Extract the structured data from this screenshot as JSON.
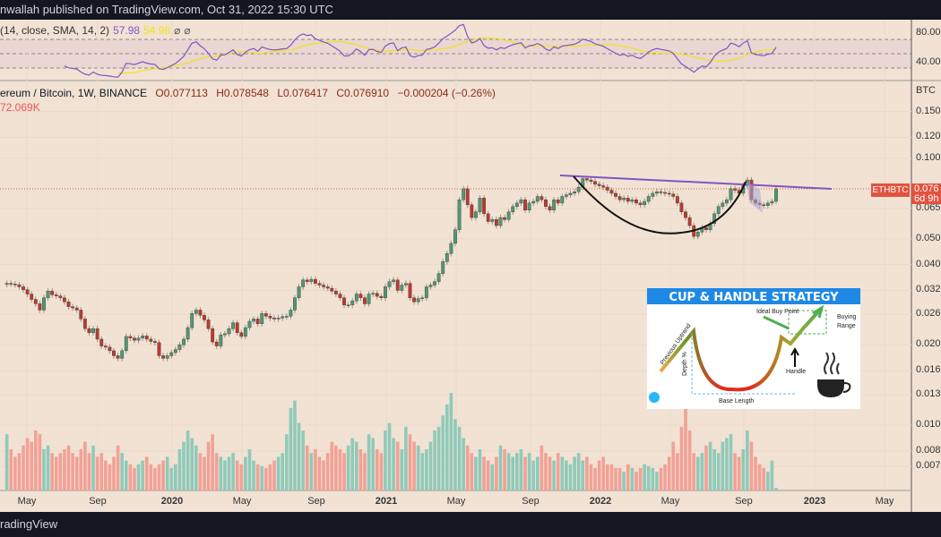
{
  "header": {
    "text": "nwallah published on TradingView.com, Oct 31, 2022 15:30 UTC"
  },
  "footer": {
    "text": "radingView"
  },
  "rsi": {
    "legend_params": "(14, close, SMA, 14, 2)",
    "value": "57.98",
    "sma_value": "54.98",
    "icons": [
      "⌀",
      "⌀"
    ],
    "axis_ticks": [
      "80.00",
      "40.00"
    ],
    "line_color": "#7e57c2",
    "sma_color": "#f2e21a",
    "bands": [
      70,
      50,
      30
    ]
  },
  "main": {
    "symbol": "ereum / Bitcoin, 1W, BINANCE",
    "open": "O0.077113",
    "high": "H0.078548",
    "low": "L0.076417",
    "close": "C0.076910",
    "change": "−0.000204 (−0.26%)",
    "volume": "72.069K",
    "currency": "BTC",
    "symbol_tag": "ETHBTC",
    "price_tag": "0.076",
    "countdown": "6d 9h"
  },
  "chart_data": {
    "type": "candlestick",
    "interval": "1W",
    "y_scale": "log",
    "ylim": [
      0.0065,
      0.17
    ],
    "y_ticks": [
      "0.150",
      "0.120",
      "0.100",
      "0.065",
      "0.050",
      "0.040",
      "0.032",
      "0.026",
      "0.020",
      "0.016",
      "0.013",
      "0.010",
      "0.008",
      "0.007"
    ],
    "y_tick_values": [
      0.15,
      0.12,
      0.1,
      0.065,
      0.05,
      0.04,
      0.032,
      0.026,
      0.02,
      0.016,
      0.013,
      0.01,
      0.008,
      0.007
    ],
    "x_ticks": [
      "May",
      "Sep",
      "2020",
      "May",
      "Sep",
      "2021",
      "May",
      "Sep",
      "2022",
      "May",
      "Sep",
      "2023",
      "May"
    ],
    "last_price": 0.07691,
    "up_color": "#4e9a72",
    "down_color": "#c0392b",
    "closes": [
      0.034,
      0.0338,
      0.0336,
      0.033,
      0.0322,
      0.031,
      0.0296,
      0.0285,
      0.027,
      0.03,
      0.0318,
      0.0308,
      0.0305,
      0.03,
      0.029,
      0.0278,
      0.0275,
      0.027,
      0.025,
      0.023,
      0.0222,
      0.023,
      0.021,
      0.0198,
      0.0196,
      0.019,
      0.0182,
      0.0178,
      0.019,
      0.0215,
      0.0212,
      0.0208,
      0.0212,
      0.0216,
      0.021,
      0.0206,
      0.0204,
      0.0182,
      0.0178,
      0.0182,
      0.0187,
      0.0192,
      0.02,
      0.021,
      0.0232,
      0.0262,
      0.027,
      0.0258,
      0.0248,
      0.023,
      0.0205,
      0.0198,
      0.0218,
      0.022,
      0.023,
      0.0242,
      0.0222,
      0.0215,
      0.0232,
      0.0245,
      0.025,
      0.024,
      0.0262,
      0.0256,
      0.0252,
      0.025,
      0.0252,
      0.0255,
      0.0256,
      0.027,
      0.03,
      0.033,
      0.035,
      0.0345,
      0.0352,
      0.034,
      0.0335,
      0.033,
      0.0326,
      0.0318,
      0.031,
      0.03,
      0.0282,
      0.0282,
      0.0292,
      0.031,
      0.03,
      0.0285,
      0.031,
      0.0312,
      0.0304,
      0.03,
      0.033,
      0.0345,
      0.035,
      0.032,
      0.0335,
      0.034,
      0.03,
      0.029,
      0.0298,
      0.03,
      0.033,
      0.0335,
      0.0345,
      0.037,
      0.041,
      0.044,
      0.048,
      0.054,
      0.07,
      0.077,
      0.067,
      0.06,
      0.063,
      0.071,
      0.062,
      0.058,
      0.059,
      0.056,
      0.06,
      0.059,
      0.063,
      0.066,
      0.068,
      0.07,
      0.064,
      0.068,
      0.069,
      0.072,
      0.07,
      0.066,
      0.064,
      0.07,
      0.068,
      0.072,
      0.073,
      0.074,
      0.075,
      0.078,
      0.084,
      0.083,
      0.082,
      0.08,
      0.079,
      0.078,
      0.076,
      0.074,
      0.072,
      0.07,
      0.071,
      0.069,
      0.07,
      0.068,
      0.067,
      0.069,
      0.072,
      0.074,
      0.075,
      0.0745,
      0.074,
      0.0735,
      0.072,
      0.068,
      0.063,
      0.06,
      0.056,
      0.051,
      0.053,
      0.055,
      0.054,
      0.057,
      0.062,
      0.066,
      0.068,
      0.07,
      0.077,
      0.076,
      0.074,
      0.079,
      0.083,
      0.07,
      0.068,
      0.067,
      0.0665,
      0.068,
      0.069,
      0.0769
    ],
    "volumes_k": [
      1500,
      1100,
      900,
      1000,
      1200,
      1400,
      1300,
      1600,
      1500,
      1100,
      1200,
      1000,
      900,
      1000,
      1100,
      1200,
      1000,
      900,
      1100,
      1300,
      1000,
      1200,
      900,
      1000,
      800,
      700,
      900,
      1200,
      1000,
      800,
      700,
      600,
      700,
      800,
      900,
      700,
      600,
      700,
      800,
      900,
      600,
      700,
      1100,
      1300,
      1600,
      1400,
      1200,
      1000,
      900,
      1300,
      1500,
      1000,
      900,
      800,
      900,
      1000,
      800,
      700,
      900,
      1100,
      800,
      700,
      650,
      600,
      700,
      800,
      900,
      1000,
      1500,
      2200,
      2400,
      1800,
      1600,
      1200,
      1000,
      1100,
      900,
      800,
      1000,
      1300,
      1200,
      1100,
      1000,
      1200,
      1400,
      1300,
      1100,
      1000,
      1500,
      1400,
      1100,
      1000,
      1600,
      1800,
      1400,
      1300,
      1100,
      1700,
      1500,
      1300,
      1200,
      1000,
      1100,
      1300,
      1600,
      1700,
      2000,
      2300,
      2600,
      1900,
      1700,
      1400,
      1200,
      1000,
      900,
      1100,
      900,
      800,
      700,
      900,
      1200,
      1100,
      1000,
      900,
      1000,
      1100,
      900,
      1000,
      800,
      900,
      1200,
      1000,
      900,
      800,
      1000,
      900,
      800,
      700,
      900,
      1000,
      800,
      900,
      700,
      600,
      800,
      900,
      700,
      700,
      600,
      600,
      500,
      700,
      600,
      500,
      600,
      700,
      650,
      600,
      500,
      600,
      700,
      900,
      1300,
      1000,
      1700,
      2200,
      1600,
      1000,
      900,
      1000,
      1200,
      1300,
      1100,
      1000,
      1300,
      1400,
      1500,
      1000,
      900,
      1100,
      1600,
      1300,
      900,
      700,
      600,
      500,
      800,
      72
    ],
    "drawings": {
      "resistance_color": "#7e57c2",
      "cup_color": "#111111"
    }
  },
  "infographic": {
    "title": "CUP & HANDLE STRATEGY",
    "labels": {
      "previous_uptrend": "Previous Uptrend",
      "depth": "Depth %",
      "base_length": "Base Length",
      "handle": "Handle",
      "ideal_buy_point": "Ideal Buy Point",
      "buying_range_1": "Buying",
      "buying_range_2": "Range"
    },
    "header_color": "#1e88e5"
  }
}
